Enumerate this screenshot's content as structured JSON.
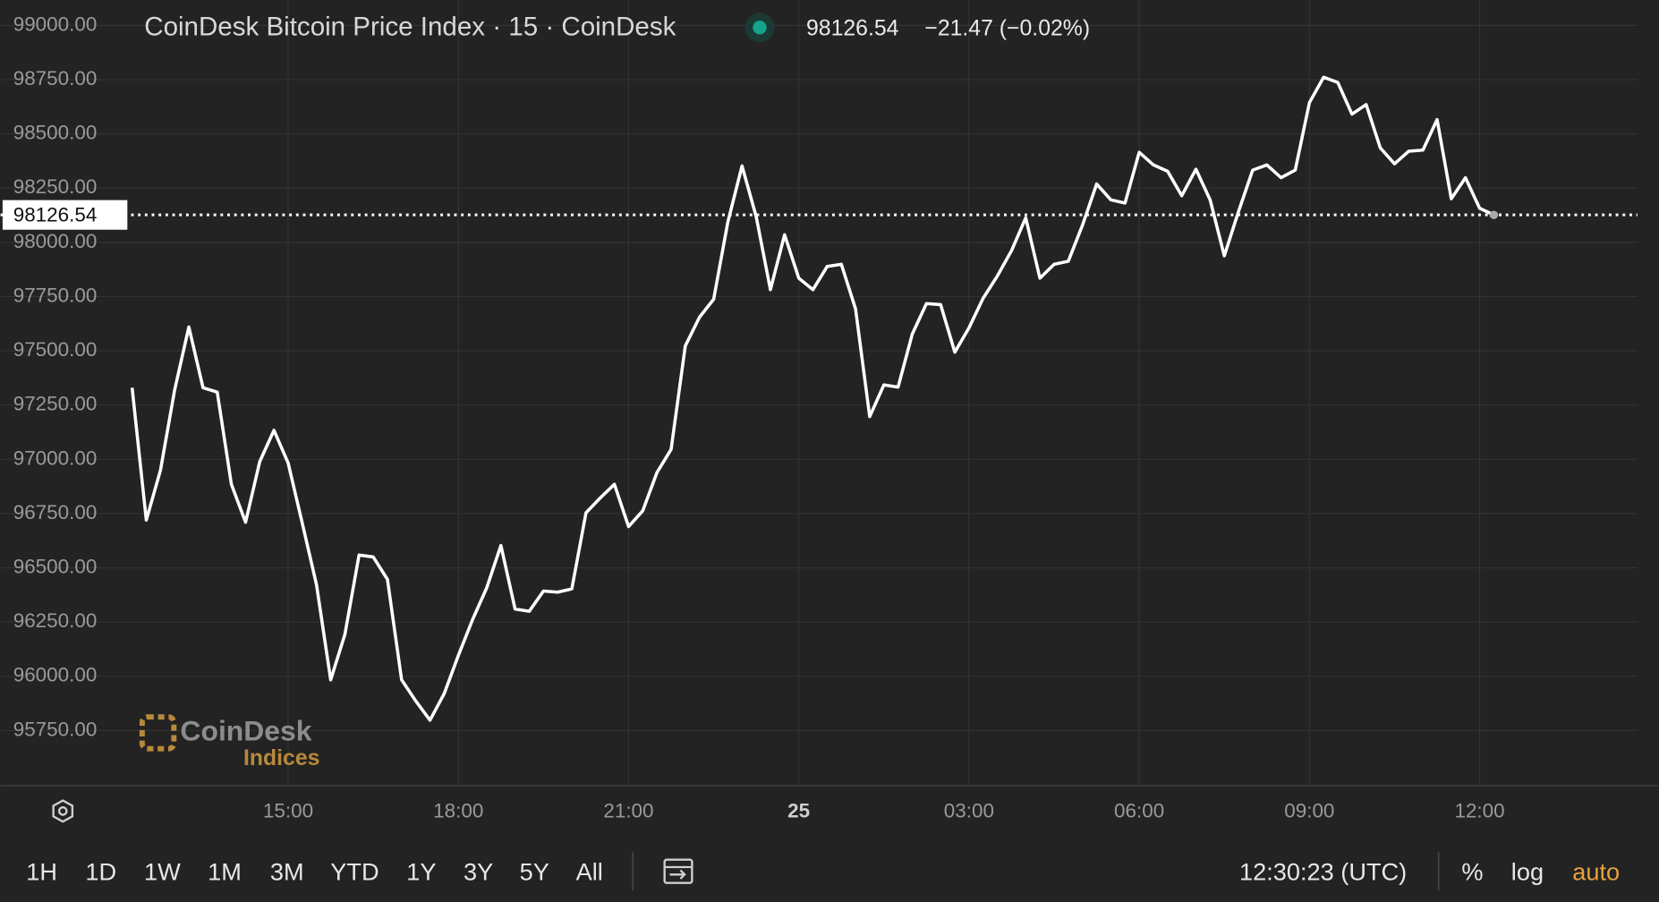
{
  "chart_data": {
    "type": "line",
    "title": "CoinDesk Bitcoin Price Index · 15 · CoinDesk",
    "change_label": "−21.47 (−0.02%)",
    "logo": {
      "name": "CoinDesk",
      "sub": "Indices"
    },
    "x": [
      12.25,
      12.5,
      12.75,
      13,
      13.25,
      13.5,
      13.75,
      14,
      14.25,
      14.5,
      14.75,
      15,
      15.25,
      15.5,
      15.75,
      16,
      16.25,
      16.5,
      16.75,
      17,
      17.25,
      17.5,
      17.75,
      18,
      18.25,
      18.5,
      18.75,
      19,
      19.25,
      19.5,
      19.75,
      20,
      20.25,
      20.5,
      20.75,
      21,
      21.25,
      21.5,
      21.75,
      22,
      22.25,
      22.5,
      22.75,
      23,
      23.25,
      23.5,
      23.75,
      24,
      24.25,
      24.5,
      24.75,
      25,
      25.25,
      25.5,
      25.75,
      26,
      26.25,
      26.5,
      26.75,
      27,
      27.25,
      27.5,
      27.75,
      28,
      28.25,
      28.5,
      28.75,
      29,
      29.25,
      29.5,
      29.75,
      30,
      30.25,
      30.5,
      30.75,
      31,
      31.25,
      31.5,
      31.75,
      32,
      32.25,
      32.5,
      32.75,
      33,
      33.25,
      33.5,
      33.75,
      34,
      34.25,
      34.5,
      34.75,
      35,
      35.25,
      35.5,
      35.75,
      36,
      36.25
    ],
    "series": [
      {
        "name": "CoinDesk Bitcoin Price Index",
        "color": "#ffffff",
        "values": [
          97330,
          96720,
          96950,
          97320,
          97610,
          97330,
          97310,
          96885,
          96710,
          96990,
          97134,
          96983,
          96705,
          96422,
          95984,
          96193,
          96559,
          96550,
          96447,
          95984,
          95886,
          95798,
          95920,
          96096,
          96261,
          96408,
          96603,
          96310,
          96300,
          96393,
          96388,
          96403,
          96754,
          96822,
          96885,
          96690,
          96763,
          96939,
          97046,
          97523,
          97655,
          97738,
          98094,
          98352,
          98118,
          97782,
          98035,
          97835,
          97782,
          97889,
          97899,
          97694,
          97197,
          97343,
          97333,
          97577,
          97718,
          97713,
          97494,
          97606,
          97743,
          97845,
          97962,
          98113,
          97835,
          97899,
          97913,
          98079,
          98269,
          98196,
          98181,
          98415,
          98357,
          98328,
          98215,
          98337,
          98196,
          97938,
          98142,
          98333,
          98357,
          98298,
          98333,
          98644,
          98761,
          98737,
          98591,
          98635,
          98435,
          98362,
          98420,
          98425,
          98566,
          98201,
          98298,
          98157,
          98126.54
        ]
      }
    ],
    "xlim": [
      9.93,
      38.78
    ],
    "ylim": [
      95496,
      99117
    ],
    "xticks": [
      {
        "value": 15,
        "label": "15:00"
      },
      {
        "value": 18,
        "label": "18:00"
      },
      {
        "value": 21,
        "label": "21:00"
      },
      {
        "value": 24,
        "label": "25"
      },
      {
        "value": 27,
        "label": "03:00"
      },
      {
        "value": 30,
        "label": "06:00"
      },
      {
        "value": 33,
        "label": "09:00"
      },
      {
        "value": 36,
        "label": "12:00"
      }
    ],
    "yticks": [
      {
        "value": 95750,
        "label": "95750.00"
      },
      {
        "value": 96000,
        "label": "96000.00"
      },
      {
        "value": 96250,
        "label": "96250.00"
      },
      {
        "value": 96500,
        "label": "96500.00"
      },
      {
        "value": 96750,
        "label": "96750.00"
      },
      {
        "value": 97000,
        "label": "97000.00"
      },
      {
        "value": 97250,
        "label": "97250.00"
      },
      {
        "value": 97500,
        "label": "97500.00"
      },
      {
        "value": 97750,
        "label": "97750.00"
      },
      {
        "value": 98000,
        "label": "98000.00"
      },
      {
        "value": 98250,
        "label": "98250.00"
      },
      {
        "value": 98500,
        "label": "98500.00"
      },
      {
        "value": 98750,
        "label": "98750.00"
      },
      {
        "value": 99000,
        "label": "99000.00"
      }
    ],
    "grid": true
  },
  "toolbar": {
    "ranges": [
      "1H",
      "1D",
      "1W",
      "1M",
      "3M",
      "YTD",
      "1Y",
      "3Y",
      "5Y",
      "All"
    ],
    "time": "12:30:23 (UTC)",
    "percent": "%",
    "log": "log",
    "auto": "auto"
  }
}
